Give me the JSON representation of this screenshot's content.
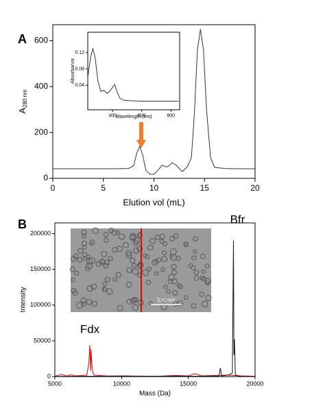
{
  "chart_data": [
    {
      "type": "line",
      "label": "A",
      "xlabel": "Elution vol (mL)",
      "ylabel": "A",
      "ylabel_sub": "280 nm",
      "x": [
        0,
        2,
        4,
        6,
        7.5,
        8.0,
        8.3,
        8.6,
        8.9,
        9.2,
        9.6,
        10,
        10.5,
        10.8,
        11.2,
        11.5,
        11.8,
        12.2,
        12.8,
        13.3,
        13.7,
        14.0,
        14.3,
        14.6,
        14.9,
        15.2,
        15.6,
        16,
        17,
        18,
        20
      ],
      "values": [
        42,
        42,
        42,
        42,
        43,
        55,
        110,
        140,
        100,
        35,
        18,
        17,
        40,
        58,
        50,
        55,
        68,
        58,
        30,
        50,
        90,
        280,
        560,
        650,
        560,
        300,
        90,
        48,
        43,
        42,
        42
      ],
      "color": "#333333",
      "xlim": [
        0,
        20
      ],
      "xticks": [
        0,
        5,
        10,
        15,
        20
      ],
      "ylim": [
        0,
        670
      ],
      "yticks": [
        0,
        200,
        400,
        600
      ]
    },
    {
      "type": "line",
      "xlabel": "Wavelength (nm)",
      "ylabel": "Absorbance",
      "x": [
        230,
        250,
        265,
        280,
        300,
        320,
        340,
        360,
        380,
        400,
        415,
        430,
        450,
        480,
        520,
        600,
        700,
        850
      ],
      "values": [
        0.06,
        0.11,
        0.13,
        0.11,
        0.05,
        0.025,
        0.028,
        0.02,
        0.025,
        0.035,
        0.042,
        0.025,
        0.008,
        0.003,
        0.002,
        0.001,
        0.001,
        0.001
      ],
      "color": "#333333",
      "xlim": [
        230,
        860
      ],
      "xticks": [
        400,
        600,
        800
      ],
      "ylim": [
        -0.02,
        0.17
      ],
      "yticks": [
        0.04,
        0.08,
        0.12
      ]
    },
    {
      "type": "line",
      "label": "B",
      "xlabel": "Mass (Da)",
      "ylabel": "Intensity",
      "image_scale_bar": "100 nm",
      "series": [
        {
          "name": "Fdx",
          "color": "#e00000",
          "x": [
            5000,
            5500,
            5900,
            6200,
            6600,
            7000,
            7400,
            7550,
            7620,
            7680,
            7720,
            7780,
            7850,
            7950,
            8300,
            9000,
            10000,
            11000,
            12000,
            13000,
            14000,
            15000,
            15500,
            16000,
            17000,
            18000,
            19000,
            20000
          ],
          "values": [
            500,
            3000,
            800,
            2500,
            1000,
            1500,
            2000,
            20000,
            44000,
            8000,
            38000,
            15000,
            6000,
            2000,
            1500,
            800,
            1000,
            800,
            600,
            800,
            1500,
            1000,
            4000,
            1000,
            1500,
            2000,
            1000,
            500
          ]
        },
        {
          "name": "Bfr",
          "color": "#111111",
          "x": [
            5000,
            8000,
            10000,
            12000,
            14000,
            16000,
            17300,
            17400,
            17500,
            18000,
            18300,
            18380,
            18420,
            18460,
            18520,
            18700,
            19000,
            20000
          ],
          "values": [
            300,
            500,
            800,
            400,
            600,
            500,
            1000,
            12000,
            1000,
            2000,
            5000,
            190000,
            30000,
            52000,
            3000,
            800,
            400,
            200
          ]
        }
      ],
      "xlim": [
        5000,
        20000
      ],
      "xticks": [
        5000,
        10000,
        15000,
        20000
      ],
      "ylim": [
        0,
        215000
      ],
      "yticks": [
        0,
        50000,
        100000,
        150000,
        200000
      ]
    }
  ]
}
